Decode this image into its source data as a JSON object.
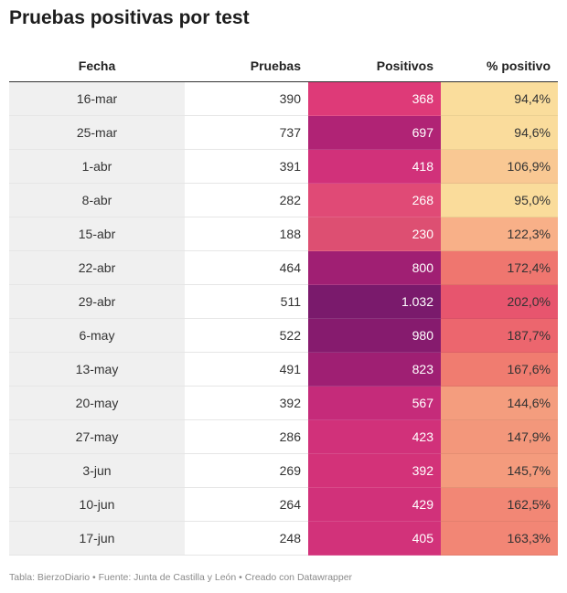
{
  "title": "Pruebas positivas por test",
  "footer": "Tabla: BierzoDiario • Fuente: Junta de Castilla y León • Creado con Datawrapper",
  "chart_data": {
    "type": "table",
    "columns": [
      "Fecha",
      "Pruebas",
      "Positivos",
      "% positivo"
    ],
    "rows": [
      {
        "fecha": "16-mar",
        "pruebas": "390",
        "positivos": "368",
        "pct": "94,4%",
        "positivos_value": 368,
        "pct_value": 94.4
      },
      {
        "fecha": "25-mar",
        "pruebas": "737",
        "positivos": "697",
        "pct": "94,6%",
        "positivos_value": 697,
        "pct_value": 94.6
      },
      {
        "fecha": "1-abr",
        "pruebas": "391",
        "positivos": "418",
        "pct": "106,9%",
        "positivos_value": 418,
        "pct_value": 106.9
      },
      {
        "fecha": "8-abr",
        "pruebas": "282",
        "positivos": "268",
        "pct": "95,0%",
        "positivos_value": 268,
        "pct_value": 95.0
      },
      {
        "fecha": "15-abr",
        "pruebas": "188",
        "positivos": "230",
        "pct": "122,3%",
        "positivos_value": 230,
        "pct_value": 122.3
      },
      {
        "fecha": "22-abr",
        "pruebas": "464",
        "positivos": "800",
        "pct": "172,4%",
        "positivos_value": 800,
        "pct_value": 172.4
      },
      {
        "fecha": "29-abr",
        "pruebas": "511",
        "positivos": "1.032",
        "pct": "202,0%",
        "positivos_value": 1032,
        "pct_value": 202.0
      },
      {
        "fecha": "6-may",
        "pruebas": "522",
        "positivos": "980",
        "pct": "187,7%",
        "positivos_value": 980,
        "pct_value": 187.7
      },
      {
        "fecha": "13-may",
        "pruebas": "491",
        "positivos": "823",
        "pct": "167,6%",
        "positivos_value": 823,
        "pct_value": 167.6
      },
      {
        "fecha": "20-may",
        "pruebas": "392",
        "positivos": "567",
        "pct": "144,6%",
        "positivos_value": 567,
        "pct_value": 144.6
      },
      {
        "fecha": "27-may",
        "pruebas": "286",
        "positivos": "423",
        "pct": "147,9%",
        "positivos_value": 423,
        "pct_value": 147.9
      },
      {
        "fecha": "3-jun",
        "pruebas": "269",
        "positivos": "392",
        "pct": "145,7%",
        "positivos_value": 392,
        "pct_value": 145.7
      },
      {
        "fecha": "10-jun",
        "pruebas": "264",
        "positivos": "429",
        "pct": "162,5%",
        "positivos_value": 429,
        "pct_value": 162.5
      },
      {
        "fecha": "17-jun",
        "pruebas": "248",
        "positivos": "405",
        "pct": "163,3%",
        "positivos_value": 405,
        "pct_value": 163.3
      }
    ],
    "positivos_colors": [
      "#de3a78",
      "#b02375",
      "#d1317a",
      "#e04a76",
      "#dd4f72",
      "#a01f73",
      "#7a1a6c",
      "#861b6e",
      "#9f1f73",
      "#c52b7a",
      "#d1317a",
      "#d33279",
      "#d1317a",
      "#d2327a"
    ],
    "pct_colors": [
      "#fadd9c",
      "#fadc9c",
      "#f9c893",
      "#fadc9b",
      "#f8b088",
      "#ef766f",
      "#e7556e",
      "#ec666e",
      "#f07c70",
      "#f49d7e",
      "#f3977b",
      "#f49b7d",
      "#f28775",
      "#f28675"
    ]
  }
}
